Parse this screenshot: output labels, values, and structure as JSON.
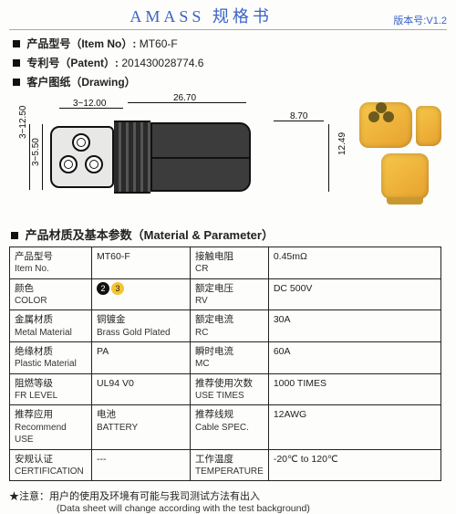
{
  "header": {
    "title": "AMASS 规格书",
    "version": "版本号:V1.2"
  },
  "meta": {
    "item_label": "产品型号（Item No）:",
    "item_value": "MT60-F",
    "patent_label": "专利号（Patent）:",
    "patent_value": "201430028774.6",
    "drawing_label": "客户图纸（Drawing）"
  },
  "dimensions": {
    "d1": "3~12.00",
    "d2": "26.70",
    "d3": "8.70",
    "v1": "3~12.50",
    "v2": "3~5.50",
    "v3": "12.49"
  },
  "section_title": "产品材质及基本参数（Material & Parameter）",
  "table": {
    "rows": [
      {
        "l1": "产品型号",
        "l1e": "Item No.",
        "v1": "MT60-F",
        "l2": "接触电阻",
        "l2e": "CR",
        "v2": "0.45mΩ"
      },
      {
        "l1": "颜色",
        "l1e": "COLOR",
        "v1": "",
        "l2": "额定电压",
        "l2e": "RV",
        "v2": "DC 500V",
        "color_swatch": true
      },
      {
        "l1": "金属材质",
        "l1e": "Metal Material",
        "v1": "铜镀金",
        "v1e": "Brass Gold Plated",
        "l2": "额定电流",
        "l2e": "RC",
        "v2": "30A"
      },
      {
        "l1": "绝缘材质",
        "l1e": "Plastic Material",
        "v1": "PA",
        "l2": "瞬时电流",
        "l2e": "MC",
        "v2": "60A"
      },
      {
        "l1": "阻燃等级",
        "l1e": "FR LEVEL",
        "v1": "UL94 V0",
        "l2": "推荐使用次数",
        "l2e": "USE TIMES",
        "v2": "1000 TIMES"
      },
      {
        "l1": "推荐应用",
        "l1e": "Recommend USE",
        "v1": "电池",
        "v1e": "BATTERY",
        "l2": "推荐线规",
        "l2e": "Cable SPEC.",
        "v2": "12AWG"
      },
      {
        "l1": "安规认证",
        "l1e": "CERTIFICATION",
        "v1": "---",
        "l2": "工作温度",
        "l2e": "TEMPERATURE",
        "v2": "-20℃ to 120℃"
      }
    ],
    "color_badges": [
      "2",
      "3"
    ]
  },
  "footnote": {
    "cn": "★注意：用户的使用及环境有可能与我司测试方法有出入",
    "en": "(Data sheet will change according with the test background)"
  }
}
